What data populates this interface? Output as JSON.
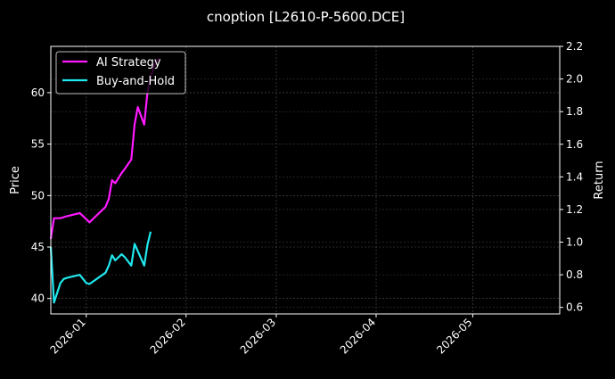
{
  "chart_data": {
    "type": "line",
    "title": "cnoption [L2610-P-5600.DCE]",
    "xlabel": "",
    "ylabel": "Price",
    "ylabel_right": "Return",
    "x_ticks": [
      "2026-01",
      "2026-02",
      "2026-03",
      "2026-04",
      "2026-05"
    ],
    "y_ticks_left": [
      40,
      45,
      50,
      55,
      60
    ],
    "y_ticks_right": [
      "0.6",
      "0.8",
      "1.0",
      "1.2",
      "1.4",
      "1.6",
      "1.8",
      "2.0",
      "2.2"
    ],
    "ylim_left": [
      38.5,
      64.5
    ],
    "ylim_right": [
      0.56,
      2.2
    ],
    "xlim": [
      "2025-12-21",
      "2026-05-28"
    ],
    "grid": true,
    "legend_position": "upper left",
    "series": [
      {
        "name": "AI Strategy",
        "color": "#ff1aff",
        "axis": "left",
        "x": [
          "2025-12-21",
          "2025-12-22",
          "2025-12-24",
          "2025-12-25",
          "2025-12-26",
          "2025-12-30",
          "2026-01-01",
          "2026-01-02",
          "2026-01-07",
          "2026-01-08",
          "2026-01-09",
          "2026-01-10",
          "2026-01-12",
          "2026-01-13",
          "2026-01-15",
          "2026-01-16",
          "2026-01-17",
          "2026-01-19",
          "2026-01-20",
          "2026-01-21",
          "2026-01-22",
          "2026-01-23",
          "2026-01-24"
        ],
        "values": [
          45.8,
          47.8,
          47.8,
          47.9,
          48.0,
          48.3,
          47.7,
          47.4,
          48.9,
          49.7,
          51.5,
          51.2,
          52.2,
          52.6,
          53.5,
          56.9,
          58.6,
          56.9,
          60.0,
          61.5,
          62.5,
          63.2,
          63.3
        ]
      },
      {
        "name": "Buy-and-Hold",
        "color": "#1fe8ee",
        "axis": "left",
        "x": [
          "2025-12-21",
          "2025-12-22",
          "2025-12-24",
          "2025-12-25",
          "2025-12-26",
          "2025-12-30",
          "2026-01-01",
          "2026-01-02",
          "2026-01-07",
          "2026-01-08",
          "2026-01-09",
          "2026-01-10",
          "2026-01-12",
          "2026-01-13",
          "2026-01-15",
          "2026-01-16",
          "2026-01-17",
          "2026-01-19",
          "2026-01-20",
          "2026-01-21"
        ],
        "values": [
          45.0,
          39.6,
          41.5,
          41.9,
          42.0,
          42.3,
          41.5,
          41.4,
          42.5,
          43.2,
          44.2,
          43.7,
          44.3,
          44.0,
          43.2,
          45.3,
          44.6,
          43.2,
          45.2,
          46.5
        ]
      }
    ]
  },
  "legend": {
    "items": [
      "AI Strategy",
      "Buy-and-Hold"
    ]
  }
}
